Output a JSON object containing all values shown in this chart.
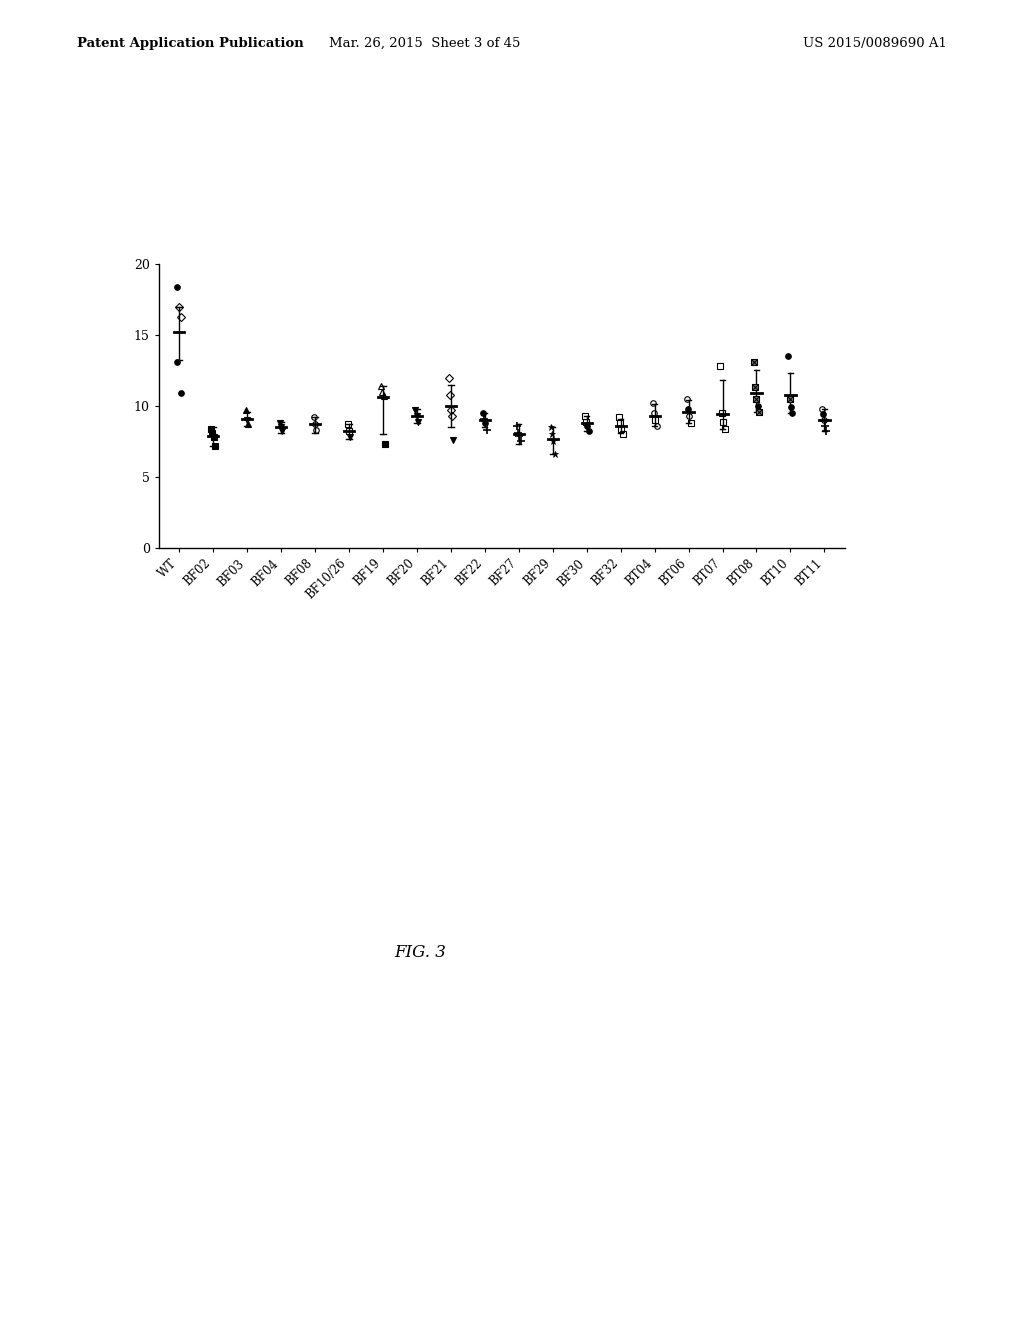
{
  "categories": [
    "WT",
    "BF02",
    "BF03",
    "BF04",
    "BF08",
    "BF10/26",
    "BF19",
    "BF20",
    "BF21",
    "BF22",
    "BF27",
    "BF29",
    "BF30",
    "BF32",
    "BT04",
    "BT06",
    "BT07",
    "BT08",
    "BT10",
    "BT11"
  ],
  "header_left": "Patent Application Publication",
  "header_center": "Mar. 26, 2015  Sheet 3 of 45",
  "header_right": "US 2015/0089690 A1",
  "figure_label": "FIG. 3",
  "background_color": "#ffffff",
  "ylim": [
    0,
    20
  ],
  "yticks": [
    0,
    5,
    10,
    15,
    20
  ],
  "groups": [
    {
      "x": 0,
      "label": "WT",
      "points": [
        18.4,
        17.0,
        16.3,
        13.1,
        10.9
      ],
      "mean": 15.2,
      "ci_low": 13.2,
      "ci_high": 17.0,
      "markers": [
        "circle_filled",
        "diamond_open",
        "diamond_open",
        "circle_filled",
        "circle_filled"
      ],
      "jitter": [
        -0.05,
        0.0,
        0.05,
        -0.05,
        0.05
      ]
    },
    {
      "x": 1,
      "label": "BF02",
      "points": [
        8.4,
        8.1,
        7.8,
        7.2
      ],
      "mean": 7.9,
      "ci_low": 7.2,
      "ci_high": 8.5,
      "markers": [
        "square_filled",
        "square_filled",
        "square_filled",
        "square_filled"
      ],
      "jitter": [
        -0.06,
        -0.02,
        0.02,
        0.06
      ]
    },
    {
      "x": 2,
      "label": "BF03",
      "points": [
        9.7,
        9.0,
        8.7
      ],
      "mean": 9.1,
      "ci_low": 8.6,
      "ci_high": 9.6,
      "markers": [
        "triangle_up_filled",
        "triangle_down_filled",
        "triangle_up_filled"
      ],
      "jitter": [
        -0.04,
        0.0,
        0.04
      ]
    },
    {
      "x": 3,
      "label": "BF04",
      "points": [
        8.8,
        8.5,
        8.2
      ],
      "mean": 8.5,
      "ci_low": 8.1,
      "ci_high": 8.9,
      "markers": [
        "triangle_down_filled",
        "triangle_down_filled",
        "triangle_down_filled"
      ],
      "jitter": [
        -0.04,
        0.0,
        0.04
      ]
    },
    {
      "x": 4,
      "label": "BF08",
      "points": [
        9.2,
        8.7,
        8.3
      ],
      "mean": 8.7,
      "ci_low": 8.1,
      "ci_high": 9.2,
      "markers": [
        "circle_open",
        "circle_open",
        "circle_open"
      ],
      "jitter": [
        -0.04,
        0.0,
        0.04
      ]
    },
    {
      "x": 5,
      "label": "BF10/26",
      "points": [
        8.7,
        8.2,
        7.8
      ],
      "mean": 8.2,
      "ci_low": 7.7,
      "ci_high": 8.7,
      "markers": [
        "square_open",
        "square_open",
        "triangle_down_filled"
      ],
      "jitter": [
        -0.04,
        0.0,
        0.04
      ]
    },
    {
      "x": 6,
      "label": "BF19",
      "points": [
        11.4,
        11.0,
        10.7,
        7.3
      ],
      "mean": 10.6,
      "ci_low": 8.0,
      "ci_high": 11.4,
      "markers": [
        "triangle_up_open",
        "triangle_up_open",
        "triangle_up_open",
        "square_filled"
      ],
      "jitter": [
        -0.06,
        -0.02,
        0.02,
        0.06
      ]
    },
    {
      "x": 7,
      "label": "BF20",
      "points": [
        9.7,
        9.3,
        8.9
      ],
      "mean": 9.3,
      "ci_low": 8.8,
      "ci_high": 9.8,
      "markers": [
        "triangle_down_filled",
        "triangle_down_filled",
        "triangle_down_filled"
      ],
      "jitter": [
        -0.04,
        0.0,
        0.04
      ]
    },
    {
      "x": 8,
      "label": "BF21",
      "points": [
        12.0,
        10.8,
        9.7,
        9.3,
        7.6
      ],
      "mean": 10.0,
      "ci_low": 8.5,
      "ci_high": 11.5,
      "markers": [
        "diamond_open",
        "diamond_open",
        "diamond_open",
        "diamond_open",
        "inverted_triangle_filled"
      ],
      "jitter": [
        -0.06,
        -0.03,
        0.0,
        0.03,
        0.06
      ]
    },
    {
      "x": 9,
      "label": "BF22",
      "points": [
        9.5,
        9.1,
        8.8,
        8.3
      ],
      "mean": 9.0,
      "ci_low": 8.5,
      "ci_high": 9.5,
      "markers": [
        "circle_filled",
        "plus",
        "circle_filled",
        "plus"
      ],
      "jitter": [
        -0.06,
        -0.02,
        0.02,
        0.06
      ]
    },
    {
      "x": 10,
      "label": "BF27",
      "points": [
        8.6,
        8.1,
        7.9,
        7.5
      ],
      "mean": 8.0,
      "ci_low": 7.3,
      "ci_high": 8.7,
      "markers": [
        "plus",
        "plus",
        "plus",
        "plus"
      ],
      "jitter": [
        -0.06,
        -0.02,
        0.02,
        0.06
      ]
    },
    {
      "x": 11,
      "label": "BF29",
      "points": [
        8.5,
        8.0,
        7.5,
        6.6
      ],
      "mean": 7.7,
      "ci_low": 6.6,
      "ci_high": 8.5,
      "markers": [
        "asterisk",
        "asterisk",
        "asterisk",
        "asterisk"
      ],
      "jitter": [
        -0.06,
        -0.02,
        0.02,
        0.06
      ]
    },
    {
      "x": 12,
      "label": "BF30",
      "points": [
        9.3,
        8.9,
        8.6,
        8.2
      ],
      "mean": 8.8,
      "ci_low": 8.2,
      "ci_high": 9.3,
      "markers": [
        "square_open",
        "square_open",
        "circle_filled",
        "circle_filled"
      ],
      "jitter": [
        -0.06,
        -0.02,
        0.02,
        0.06
      ]
    },
    {
      "x": 13,
      "label": "BF32",
      "points": [
        9.2,
        8.8,
        8.4,
        8.0
      ],
      "mean": 8.6,
      "ci_low": 8.1,
      "ci_high": 9.1,
      "markers": [
        "square_open",
        "square_open",
        "square_open",
        "square_open"
      ],
      "jitter": [
        -0.06,
        -0.02,
        0.02,
        0.06
      ]
    },
    {
      "x": 14,
      "label": "BT04",
      "points": [
        10.2,
        9.5,
        9.0,
        8.6
      ],
      "mean": 9.3,
      "ci_low": 8.6,
      "ci_high": 10.1,
      "markers": [
        "circle_open",
        "circle_open",
        "square_open",
        "circle_open"
      ],
      "jitter": [
        -0.06,
        -0.02,
        0.02,
        0.06
      ]
    },
    {
      "x": 15,
      "label": "BT06",
      "points": [
        10.5,
        9.8,
        9.3,
        8.8
      ],
      "mean": 9.6,
      "ci_low": 8.8,
      "ci_high": 10.4,
      "markers": [
        "circle_open",
        "circle_filled",
        "circle_open",
        "square_open"
      ],
      "jitter": [
        -0.06,
        -0.02,
        0.02,
        0.06
      ]
    },
    {
      "x": 16,
      "label": "BT07",
      "points": [
        12.8,
        9.5,
        8.9,
        8.4
      ],
      "mean": 9.4,
      "ci_low": 8.4,
      "ci_high": 11.8,
      "markers": [
        "square_open",
        "square_open",
        "square_open",
        "square_open"
      ],
      "jitter": [
        -0.06,
        -0.02,
        0.02,
        0.06
      ]
    },
    {
      "x": 17,
      "label": "BT08",
      "points": [
        13.1,
        11.3,
        10.5,
        10.0,
        9.6
      ],
      "mean": 10.9,
      "ci_low": 9.6,
      "ci_high": 12.5,
      "markers": [
        "square_checked",
        "square_checked",
        "square_checked",
        "circle_filled",
        "square_checked"
      ],
      "jitter": [
        -0.06,
        -0.03,
        0.0,
        0.03,
        0.06
      ]
    },
    {
      "x": 18,
      "label": "BT10",
      "points": [
        13.5,
        10.5,
        9.9,
        9.5
      ],
      "mean": 10.8,
      "ci_low": 9.5,
      "ci_high": 12.3,
      "markers": [
        "circle_filled",
        "square_checked",
        "circle_filled",
        "circle_filled"
      ],
      "jitter": [
        -0.06,
        -0.02,
        0.02,
        0.06
      ]
    },
    {
      "x": 19,
      "label": "BT11",
      "points": [
        9.8,
        9.4,
        9.0,
        8.6,
        8.2
      ],
      "mean": 9.0,
      "ci_low": 8.2,
      "ci_high": 9.8,
      "markers": [
        "circle_open",
        "circle_filled",
        "circle_open",
        "plus",
        "plus"
      ],
      "jitter": [
        -0.06,
        -0.03,
        0.0,
        0.03,
        0.06
      ]
    }
  ]
}
